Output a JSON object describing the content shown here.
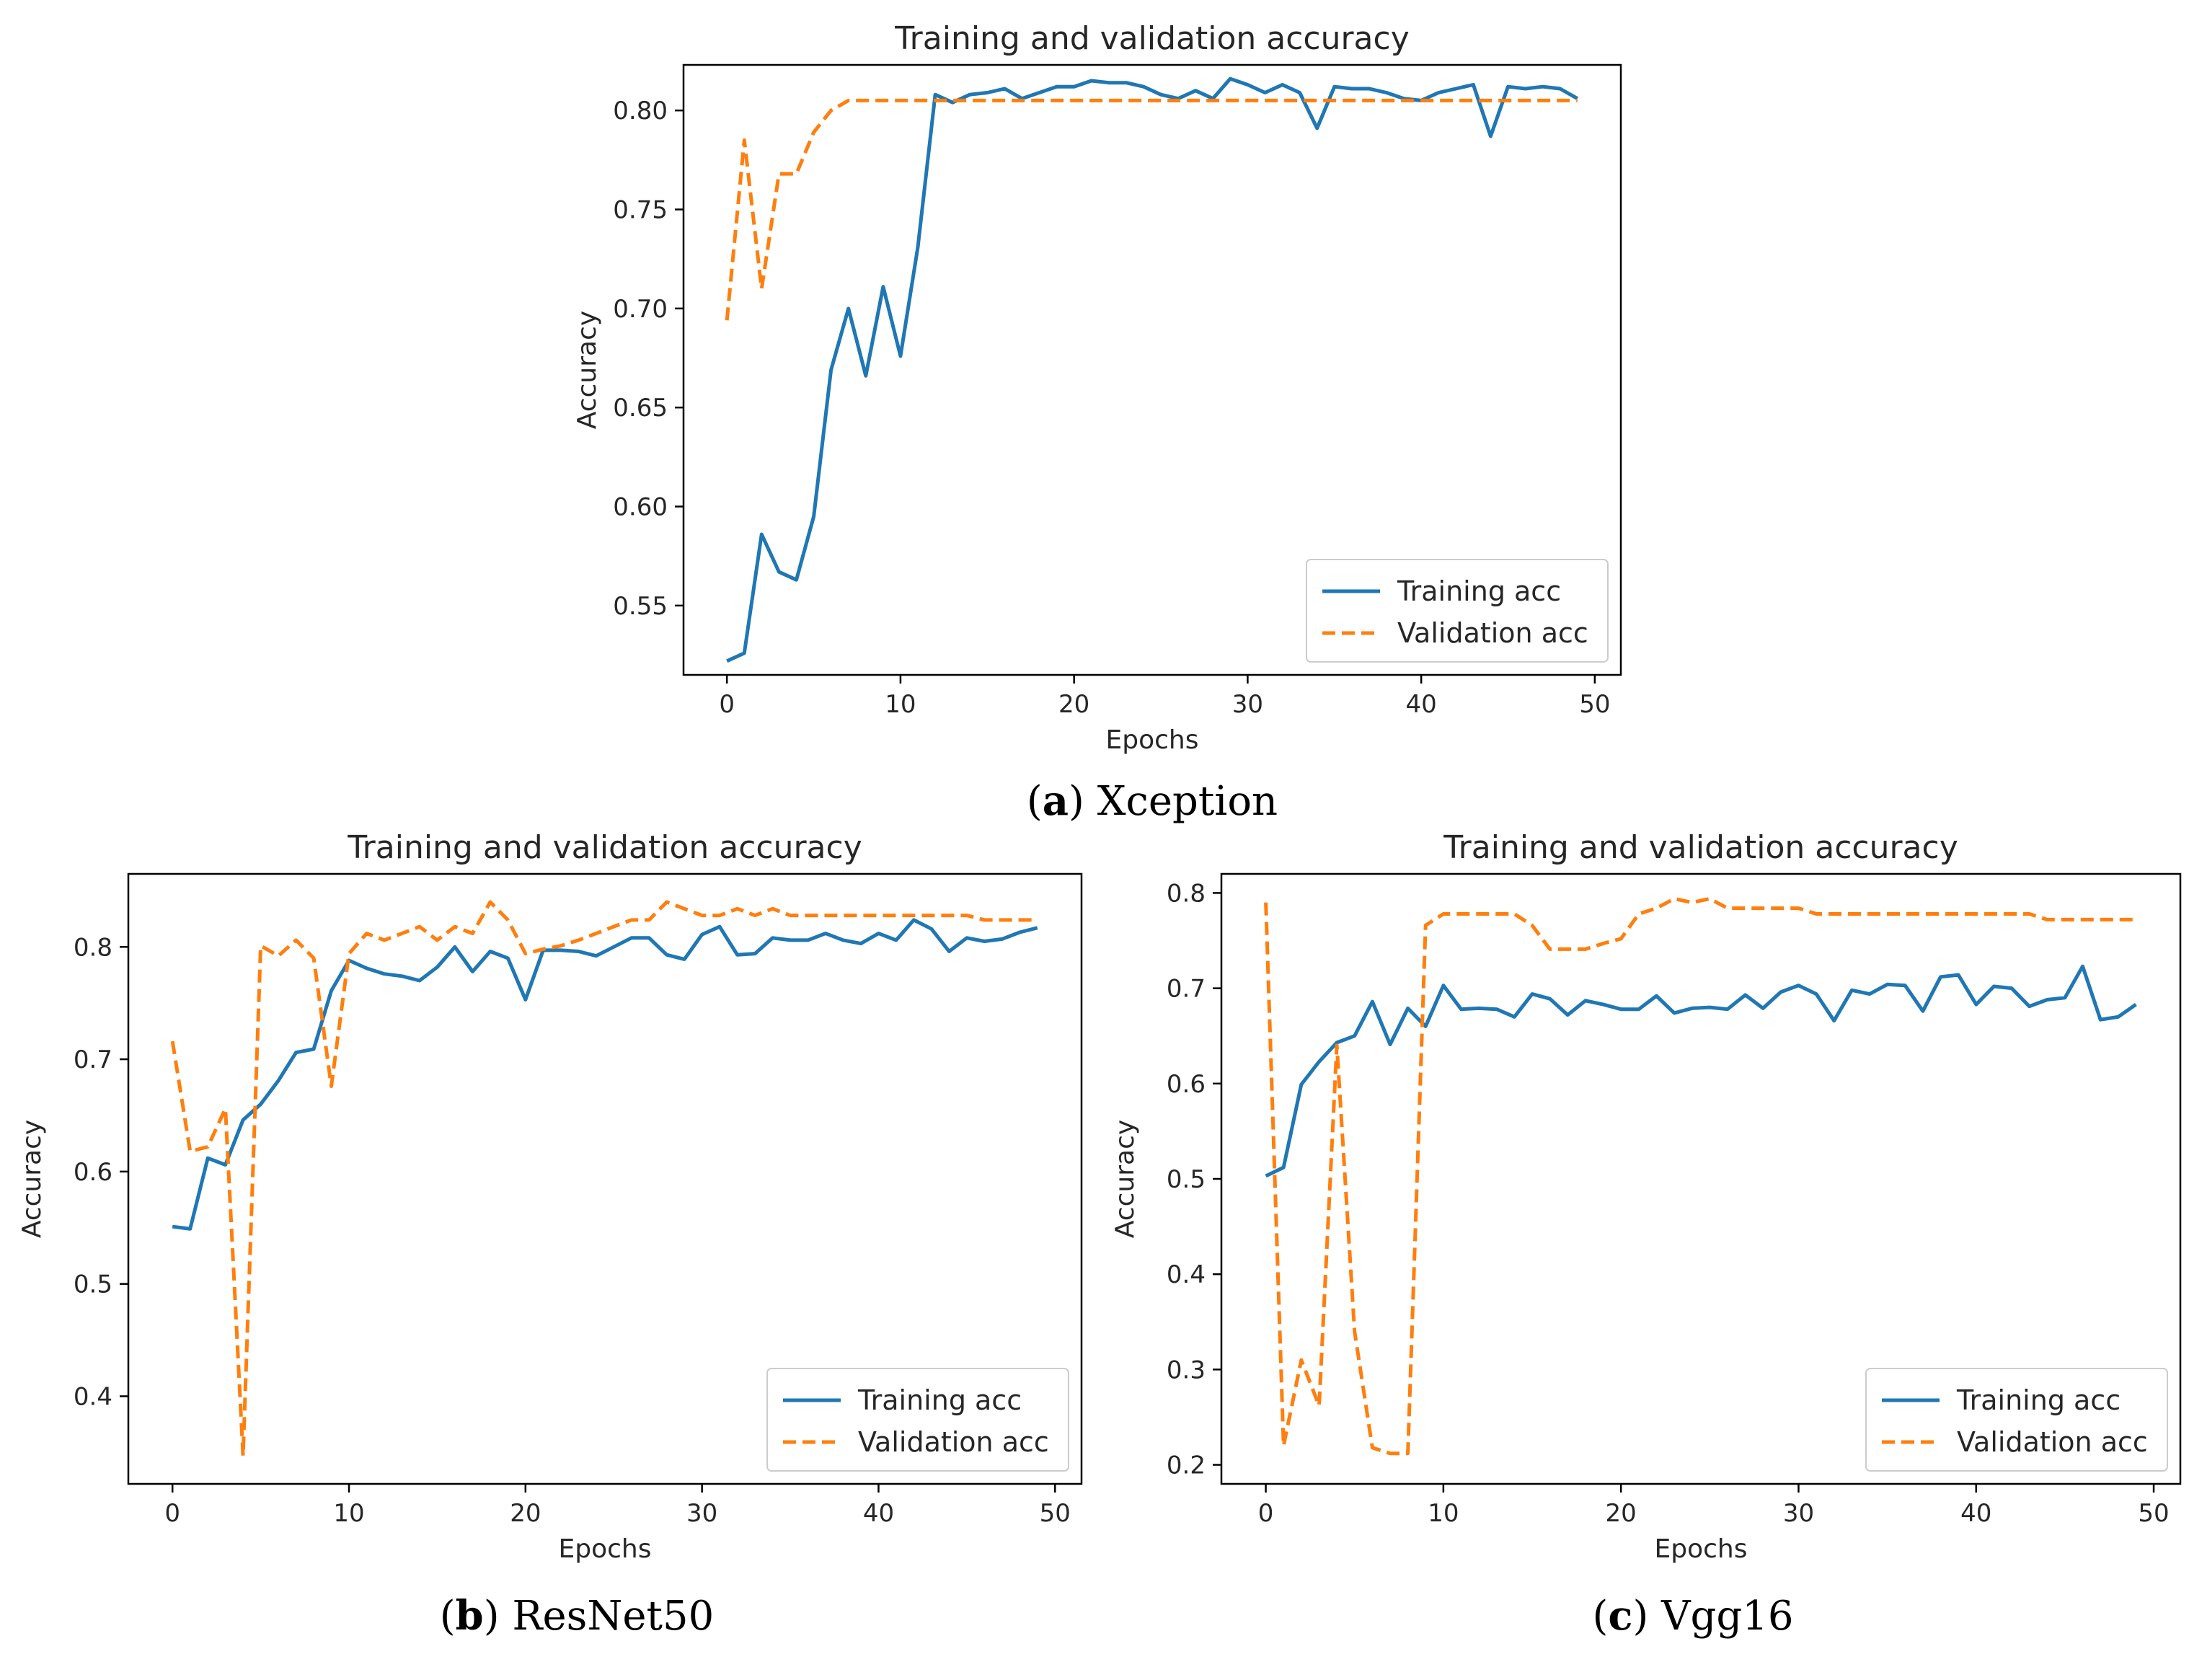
{
  "colors": {
    "training": "#1f77b4",
    "validation": "#ff7f0e",
    "frame": "#000000",
    "text": "#262626"
  },
  "chart_data": [
    {
      "type": "line",
      "title": "Training and validation accuracy",
      "xlabel": "Epochs",
      "ylabel": "Accuracy",
      "xlim": [
        -2.5,
        51.5
      ],
      "ylim": [
        0.515,
        0.823
      ],
      "xticks": [
        0,
        10,
        20,
        30,
        40,
        50
      ],
      "yticks": [
        0.55,
        0.6,
        0.65,
        0.7,
        0.75,
        0.8
      ],
      "ytick_labels": [
        "0.55",
        "0.60",
        "0.65",
        "0.70",
        "0.75",
        "0.80"
      ],
      "legend": "lower-right",
      "grid": false,
      "caption": {
        "letter": "a",
        "name": "Xception"
      },
      "series": [
        {
          "name": "Training acc",
          "style": "solid",
          "values": [
            0.522,
            0.526,
            0.586,
            0.567,
            0.563,
            0.595,
            0.669,
            0.7,
            0.666,
            0.711,
            0.676,
            0.731,
            0.808,
            0.804,
            0.808,
            0.809,
            0.811,
            0.806,
            0.809,
            0.812,
            0.812,
            0.815,
            0.814,
            0.814,
            0.812,
            0.808,
            0.806,
            0.81,
            0.806,
            0.816,
            0.813,
            0.809,
            0.813,
            0.809,
            0.791,
            0.812,
            0.811,
            0.811,
            0.809,
            0.806,
            0.805,
            0.809,
            0.811,
            0.813,
            0.787,
            0.812,
            0.811,
            0.812,
            0.811,
            0.806
          ]
        },
        {
          "name": "Validation acc",
          "style": "dashed",
          "values": [
            0.694,
            0.785,
            0.71,
            0.768,
            0.768,
            0.789,
            0.8,
            0.805,
            0.805,
            0.805,
            0.805,
            0.805,
            0.805,
            0.805,
            0.805,
            0.805,
            0.805,
            0.805,
            0.805,
            0.805,
            0.805,
            0.805,
            0.805,
            0.805,
            0.805,
            0.805,
            0.805,
            0.805,
            0.805,
            0.805,
            0.805,
            0.805,
            0.805,
            0.805,
            0.805,
            0.805,
            0.805,
            0.805,
            0.805,
            0.805,
            0.805,
            0.805,
            0.805,
            0.805,
            0.805,
            0.805,
            0.805,
            0.805,
            0.805,
            0.805
          ]
        }
      ]
    },
    {
      "type": "line",
      "title": "Training and validation accuracy",
      "xlabel": "Epochs",
      "ylabel": "Accuracy",
      "xlim": [
        -2.5,
        51.5
      ],
      "ylim": [
        0.322,
        0.865
      ],
      "xticks": [
        0,
        10,
        20,
        30,
        40,
        50
      ],
      "yticks": [
        0.4,
        0.5,
        0.6,
        0.7,
        0.8
      ],
      "ytick_labels": [
        "0.4",
        "0.5",
        "0.6",
        "0.7",
        "0.8"
      ],
      "legend": "lower-right",
      "grid": false,
      "caption": {
        "letter": "b",
        "name": "ResNet50"
      },
      "series": [
        {
          "name": "Training acc",
          "style": "solid",
          "values": [
            0.551,
            0.549,
            0.612,
            0.606,
            0.646,
            0.66,
            0.681,
            0.706,
            0.709,
            0.761,
            0.788,
            0.781,
            0.776,
            0.774,
            0.77,
            0.782,
            0.8,
            0.778,
            0.796,
            0.79,
            0.753,
            0.797,
            0.797,
            0.796,
            0.792,
            0.8,
            0.808,
            0.808,
            0.793,
            0.789,
            0.811,
            0.818,
            0.793,
            0.794,
            0.808,
            0.806,
            0.806,
            0.812,
            0.806,
            0.803,
            0.812,
            0.806,
            0.824,
            0.816,
            0.796,
            0.808,
            0.805,
            0.807,
            0.813,
            0.817
          ]
        },
        {
          "name": "Validation acc",
          "style": "dashed",
          "values": [
            0.716,
            0.618,
            0.622,
            0.656,
            0.347,
            0.801,
            0.792,
            0.806,
            0.79,
            0.676,
            0.794,
            0.812,
            0.806,
            0.812,
            0.818,
            0.806,
            0.818,
            0.812,
            0.84,
            0.824,
            0.794,
            0.798,
            0.801,
            0.806,
            0.812,
            0.818,
            0.824,
            0.824,
            0.84,
            0.834,
            0.828,
            0.828,
            0.834,
            0.828,
            0.834,
            0.828,
            0.828,
            0.828,
            0.828,
            0.828,
            0.828,
            0.828,
            0.828,
            0.828,
            0.828,
            0.828,
            0.824,
            0.824,
            0.824,
            0.824
          ]
        }
      ]
    },
    {
      "type": "line",
      "title": "Training and validation accuracy",
      "xlabel": "Epochs",
      "ylabel": "Accuracy",
      "xlim": [
        -2.5,
        51.5
      ],
      "ylim": [
        0.18,
        0.82
      ],
      "xticks": [
        0,
        10,
        20,
        30,
        40,
        50
      ],
      "yticks": [
        0.2,
        0.3,
        0.4,
        0.5,
        0.6,
        0.7,
        0.8
      ],
      "ytick_labels": [
        "0.2",
        "0.3",
        "0.4",
        "0.5",
        "0.6",
        "0.7",
        "0.8"
      ],
      "legend": "lower-right",
      "grid": false,
      "caption": {
        "letter": "c",
        "name": "Vgg16"
      },
      "series": [
        {
          "name": "Training acc",
          "style": "solid",
          "values": [
            0.503,
            0.512,
            0.599,
            0.623,
            0.643,
            0.65,
            0.686,
            0.641,
            0.679,
            0.66,
            0.703,
            0.678,
            0.679,
            0.678,
            0.67,
            0.694,
            0.689,
            0.672,
            0.687,
            0.683,
            0.678,
            0.678,
            0.692,
            0.674,
            0.679,
            0.68,
            0.678,
            0.693,
            0.679,
            0.696,
            0.703,
            0.694,
            0.666,
            0.698,
            0.694,
            0.704,
            0.703,
            0.676,
            0.712,
            0.714,
            0.683,
            0.702,
            0.7,
            0.681,
            0.688,
            0.69,
            0.723,
            0.667,
            0.67,
            0.683
          ]
        },
        {
          "name": "Validation acc",
          "style": "dashed",
          "values": [
            0.79,
            0.22,
            0.31,
            0.262,
            0.64,
            0.34,
            0.218,
            0.212,
            0.212,
            0.766,
            0.778,
            0.778,
            0.778,
            0.778,
            0.778,
            0.766,
            0.741,
            0.741,
            0.741,
            0.747,
            0.752,
            0.778,
            0.784,
            0.794,
            0.79,
            0.794,
            0.784,
            0.784,
            0.784,
            0.784,
            0.784,
            0.778,
            0.778,
            0.778,
            0.778,
            0.778,
            0.778,
            0.778,
            0.778,
            0.778,
            0.778,
            0.778,
            0.778,
            0.778,
            0.772,
            0.772,
            0.772,
            0.772,
            0.772,
            0.772
          ]
        }
      ]
    }
  ]
}
